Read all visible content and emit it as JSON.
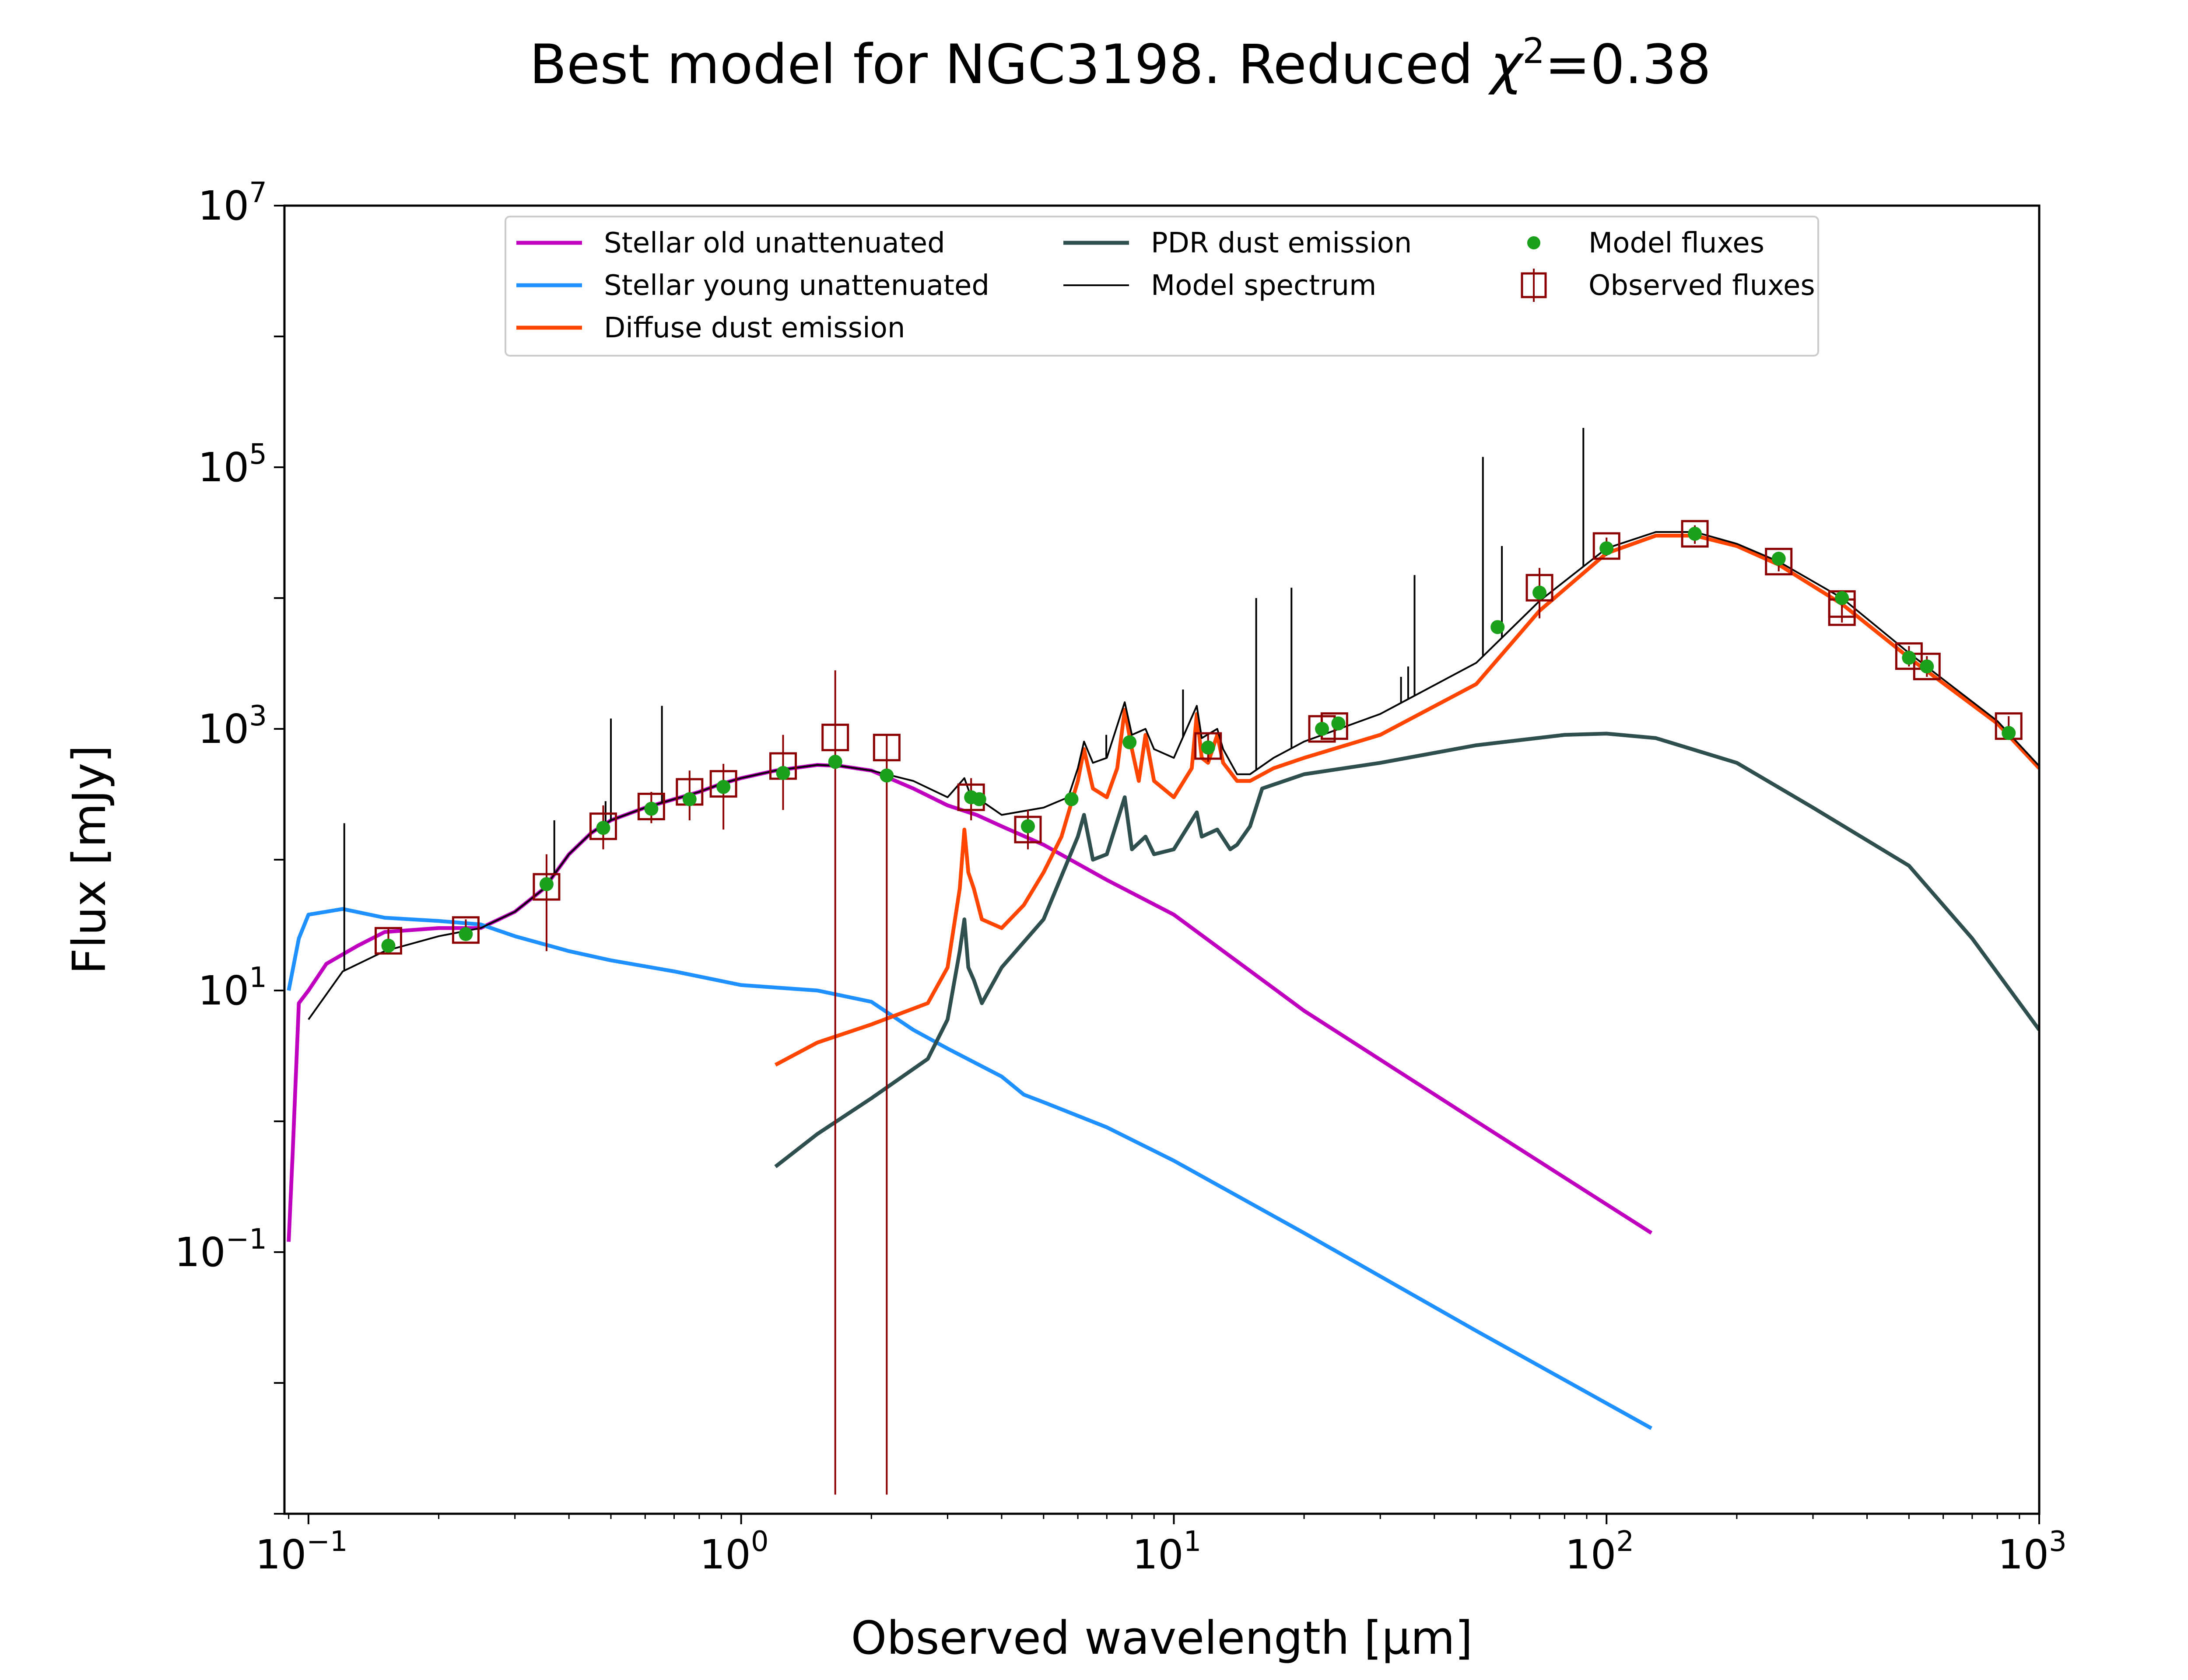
{
  "chart_data": {
    "type": "line",
    "title_main": "Best model for NGC3198. Reduced ",
    "title_chi": "χ",
    "title_sup": "2",
    "title_tail": "=0.38",
    "xlabel": "Observed wavelength [μm]",
    "ylabel": "Flux [mJy]",
    "x_scale": "log",
    "y_scale": "log",
    "xlim": [
      0.088,
      1000
    ],
    "ylim": [
      0.001,
      10000000
    ],
    "grid": false,
    "legend_position": "top-center",
    "xticks": [
      {
        "value": 0.1,
        "base": "10",
        "exp": "−1"
      },
      {
        "value": 1,
        "base": "10",
        "exp": "0"
      },
      {
        "value": 10,
        "base": "10",
        "exp": "1"
      },
      {
        "value": 100,
        "base": "10",
        "exp": "2"
      },
      {
        "value": 1000,
        "base": "10",
        "exp": "3"
      }
    ],
    "yticks": [
      {
        "value": 0.1,
        "base": "10",
        "exp": "−1"
      },
      {
        "value": 10,
        "base": "10",
        "exp": "1"
      },
      {
        "value": 1000,
        "base": "10",
        "exp": "3"
      },
      {
        "value": 100000,
        "base": "10",
        "exp": "5"
      },
      {
        "value": 10000000,
        "base": "10",
        "exp": "7"
      }
    ],
    "series": [
      {
        "name": "Stellar old unattenuated",
        "color": "#bf00bf",
        "stroke": 2.6,
        "points": [
          [
            0.09,
            0.12
          ],
          [
            0.092,
            0.6
          ],
          [
            0.095,
            8
          ],
          [
            0.1,
            10
          ],
          [
            0.11,
            16
          ],
          [
            0.13,
            22
          ],
          [
            0.15,
            28
          ],
          [
            0.2,
            30
          ],
          [
            0.25,
            30
          ],
          [
            0.3,
            40
          ],
          [
            0.35,
            60
          ],
          [
            0.4,
            110
          ],
          [
            0.45,
            160
          ],
          [
            0.5,
            200
          ],
          [
            0.6,
            250
          ],
          [
            0.7,
            290
          ],
          [
            0.8,
            330
          ],
          [
            0.9,
            380
          ],
          [
            1.0,
            420
          ],
          [
            1.2,
            480
          ],
          [
            1.5,
            530
          ],
          [
            1.7,
            520
          ],
          [
            2.0,
            480
          ],
          [
            2.5,
            350
          ],
          [
            3.0,
            260
          ],
          [
            3.5,
            220
          ],
          [
            4.0,
            180
          ],
          [
            5.0,
            130
          ],
          [
            7.0,
            70
          ],
          [
            10.0,
            38
          ],
          [
            20.0,
            7
          ],
          [
            50.0,
            1.0
          ],
          [
            127,
            0.14
          ]
        ]
      },
      {
        "name": "Stellar young unattenuated",
        "color": "#1e90ff",
        "stroke": 2.6,
        "points": [
          [
            0.09,
            10
          ],
          [
            0.095,
            25
          ],
          [
            0.1,
            38
          ],
          [
            0.12,
            42
          ],
          [
            0.15,
            36
          ],
          [
            0.2,
            34
          ],
          [
            0.25,
            32
          ],
          [
            0.3,
            26
          ],
          [
            0.4,
            20
          ],
          [
            0.5,
            17
          ],
          [
            0.7,
            14
          ],
          [
            1.0,
            11
          ],
          [
            1.5,
            10
          ],
          [
            2.0,
            8.2
          ],
          [
            2.5,
            5
          ],
          [
            3.0,
            3.6
          ],
          [
            4.0,
            2.2
          ],
          [
            4.5,
            1.6
          ],
          [
            5.0,
            1.4
          ],
          [
            7.0,
            0.9
          ],
          [
            10.0,
            0.5
          ],
          [
            20.0,
            0.14
          ],
          [
            50.0,
            0.025
          ],
          [
            127,
            0.0045
          ]
        ]
      },
      {
        "name": "Diffuse dust emission",
        "color": "#ff4500",
        "stroke": 2.6,
        "points": [
          [
            1.2,
            2.7
          ],
          [
            1.5,
            4
          ],
          [
            2.0,
            5.5
          ],
          [
            2.7,
            8
          ],
          [
            3.0,
            15
          ],
          [
            3.2,
            60
          ],
          [
            3.28,
            170
          ],
          [
            3.35,
            80
          ],
          [
            3.45,
            60
          ],
          [
            3.6,
            35
          ],
          [
            4.0,
            30
          ],
          [
            4.5,
            45
          ],
          [
            5.0,
            80
          ],
          [
            5.5,
            150
          ],
          [
            6.0,
            400
          ],
          [
            6.2,
            700
          ],
          [
            6.5,
            350
          ],
          [
            7.0,
            300
          ],
          [
            7.4,
            500
          ],
          [
            7.7,
            1400
          ],
          [
            8.0,
            700
          ],
          [
            8.3,
            400
          ],
          [
            8.6,
            900
          ],
          [
            9.0,
            400
          ],
          [
            10.0,
            300
          ],
          [
            11.0,
            500
          ],
          [
            11.3,
            1300
          ],
          [
            11.6,
            600
          ],
          [
            12.0,
            550
          ],
          [
            12.6,
            900
          ],
          [
            13.0,
            550
          ],
          [
            14.0,
            400
          ],
          [
            15.0,
            400
          ],
          [
            17.0,
            500
          ],
          [
            20.0,
            600
          ],
          [
            30.0,
            900
          ],
          [
            50.0,
            2200
          ],
          [
            70.0,
            8000
          ],
          [
            100.0,
            22000
          ],
          [
            130.0,
            30000
          ],
          [
            160.0,
            30000
          ],
          [
            200.0,
            25000
          ],
          [
            250.0,
            18000
          ],
          [
            350.0,
            9000
          ],
          [
            500.0,
            3500
          ],
          [
            800.0,
            1100
          ],
          [
            1000.0,
            500
          ]
        ]
      },
      {
        "name": "PDR dust emission",
        "color": "#2f4f4f",
        "stroke": 2.6,
        "points": [
          [
            1.2,
            0.45
          ],
          [
            1.5,
            0.8
          ],
          [
            2.0,
            1.5
          ],
          [
            2.7,
            3
          ],
          [
            3.0,
            6
          ],
          [
            3.2,
            20
          ],
          [
            3.28,
            35
          ],
          [
            3.35,
            15
          ],
          [
            3.45,
            12
          ],
          [
            3.6,
            8
          ],
          [
            4.0,
            15
          ],
          [
            5.0,
            35
          ],
          [
            6.0,
            150
          ],
          [
            6.2,
            220
          ],
          [
            6.5,
            100
          ],
          [
            7.0,
            110
          ],
          [
            7.7,
            300
          ],
          [
            8.0,
            120
          ],
          [
            8.6,
            150
          ],
          [
            9.0,
            110
          ],
          [
            10.0,
            120
          ],
          [
            11.3,
            230
          ],
          [
            11.6,
            150
          ],
          [
            12.6,
            170
          ],
          [
            13.5,
            120
          ],
          [
            14.0,
            130
          ],
          [
            15.0,
            180
          ],
          [
            16.0,
            350
          ],
          [
            20.0,
            450
          ],
          [
            30.0,
            550
          ],
          [
            50.0,
            750
          ],
          [
            80.0,
            900
          ],
          [
            100.0,
            920
          ],
          [
            130.0,
            850
          ],
          [
            200.0,
            550
          ],
          [
            300.0,
            250
          ],
          [
            500.0,
            90
          ],
          [
            700.0,
            25
          ],
          [
            1000.0,
            5
          ]
        ]
      },
      {
        "name": "Model spectrum",
        "color": "#000000",
        "stroke": 1.2,
        "points": [
          [
            0.1,
            6
          ],
          [
            0.12,
            14
          ],
          [
            0.15,
            20
          ],
          [
            0.2,
            26
          ],
          [
            0.25,
            30
          ],
          [
            0.3,
            40
          ],
          [
            0.35,
            60
          ],
          [
            0.4,
            110
          ],
          [
            0.45,
            160
          ],
          [
            0.5,
            200
          ],
          [
            0.6,
            250
          ],
          [
            0.7,
            290
          ],
          [
            0.8,
            330
          ],
          [
            0.9,
            380
          ],
          [
            1.0,
            420
          ],
          [
            1.2,
            480
          ],
          [
            1.5,
            530
          ],
          [
            1.7,
            520
          ],
          [
            2.0,
            480
          ],
          [
            2.5,
            400
          ],
          [
            3.0,
            300
          ],
          [
            3.28,
            420
          ],
          [
            3.4,
            300
          ],
          [
            3.6,
            280
          ],
          [
            4.0,
            220
          ],
          [
            5.0,
            250
          ],
          [
            5.7,
            300
          ],
          [
            6.0,
            500
          ],
          [
            6.2,
            800
          ],
          [
            6.5,
            550
          ],
          [
            7.0,
            600
          ],
          [
            7.7,
            1600
          ],
          [
            8.0,
            900
          ],
          [
            8.6,
            1000
          ],
          [
            9.0,
            700
          ],
          [
            10.0,
            600
          ],
          [
            11.3,
            1500
          ],
          [
            11.6,
            850
          ],
          [
            12.6,
            1000
          ],
          [
            13.0,
            700
          ],
          [
            14.0,
            450
          ],
          [
            15.0,
            450
          ],
          [
            17.0,
            600
          ],
          [
            20.0,
            800
          ],
          [
            30.0,
            1300
          ],
          [
            50.0,
            3200
          ],
          [
            70.0,
            9500
          ],
          [
            100.0,
            24000
          ],
          [
            130.0,
            32000
          ],
          [
            160.0,
            32000
          ],
          [
            200.0,
            26000
          ],
          [
            250.0,
            19000
          ],
          [
            350.0,
            10000
          ],
          [
            500.0,
            3800
          ],
          [
            800.0,
            1150
          ],
          [
            1000.0,
            520
          ]
        ]
      }
    ],
    "emission_lines": [
      [
        0.121,
        190
      ],
      [
        0.37,
        200
      ],
      [
        0.486,
        280
      ],
      [
        0.5,
        1200
      ],
      [
        0.656,
        1500
      ],
      [
        6.98,
        900
      ],
      [
        10.5,
        2000
      ],
      [
        15.5,
        10000
      ],
      [
        18.7,
        12000
      ],
      [
        33.5,
        2500
      ],
      [
        34.8,
        3000
      ],
      [
        36.0,
        15000
      ],
      [
        51.8,
        120000
      ],
      [
        57.3,
        25000
      ],
      [
        88.4,
        200000
      ]
    ],
    "model_fluxes": [
      [
        0.153,
        22
      ],
      [
        0.231,
        27
      ],
      [
        0.355,
        65
      ],
      [
        0.48,
        175
      ],
      [
        0.62,
        245
      ],
      [
        0.76,
        290
      ],
      [
        0.91,
        360
      ],
      [
        1.25,
        460
      ],
      [
        1.65,
        560
      ],
      [
        2.17,
        440
      ],
      [
        3.4,
        300
      ],
      [
        3.55,
        290
      ],
      [
        4.6,
        180
      ],
      [
        5.8,
        290
      ],
      [
        7.9,
        790
      ],
      [
        12.0,
        720
      ],
      [
        22.0,
        1000
      ],
      [
        24.0,
        1100
      ],
      [
        56.0,
        6000
      ],
      [
        70.0,
        11000
      ],
      [
        100.0,
        24000
      ],
      [
        160.0,
        31000
      ],
      [
        250.0,
        20000
      ],
      [
        350.0,
        10000
      ],
      [
        500.0,
        3500
      ],
      [
        550.0,
        3000
      ],
      [
        850.0,
        930
      ]
    ],
    "observed_fluxes": [
      {
        "x": 0.153,
        "y": 24,
        "lo": 19,
        "hi": 30
      },
      {
        "x": 0.231,
        "y": 29,
        "lo": 24,
        "hi": 35
      },
      {
        "x": 0.355,
        "y": 62,
        "lo": 20,
        "hi": 110
      },
      {
        "x": 0.48,
        "y": 180,
        "lo": 120,
        "hi": 260
      },
      {
        "x": 0.62,
        "y": 255,
        "lo": 190,
        "hi": 330
      },
      {
        "x": 0.76,
        "y": 330,
        "lo": 200,
        "hi": 480
      },
      {
        "x": 0.91,
        "y": 380,
        "lo": 170,
        "hi": 540
      },
      {
        "x": 1.25,
        "y": 520,
        "lo": 240,
        "hi": 900
      },
      {
        "x": 1.65,
        "y": 860,
        "lo": 0.0014,
        "hi": 2800
      },
      {
        "x": 2.17,
        "y": 720,
        "lo": 0.0014,
        "hi": 900
      },
      {
        "x": 3.4,
        "y": 300,
        "lo": 200,
        "hi": 420
      },
      {
        "x": 4.6,
        "y": 170,
        "lo": 120,
        "hi": 240
      },
      {
        "x": 12.0,
        "y": 740,
        "lo": 560,
        "hi": 900
      },
      {
        "x": 22.0,
        "y": 1000,
        "lo": 850,
        "hi": 1180
      },
      {
        "x": 23.5,
        "y": 1050,
        "lo": 900,
        "hi": 1220
      },
      {
        "x": 70.0,
        "y": 12000,
        "lo": 7000,
        "hi": 17000
      },
      {
        "x": 100.0,
        "y": 25000,
        "lo": 21000,
        "hi": 29000
      },
      {
        "x": 160.0,
        "y": 31000,
        "lo": 26000,
        "hi": 36000
      },
      {
        "x": 250.0,
        "y": 19000,
        "lo": 16000,
        "hi": 22000
      },
      {
        "x": 350.0,
        "y": 9000,
        "lo": 7500,
        "hi": 10800
      },
      {
        "x": 350.0,
        "y": 7800,
        "lo": 6500,
        "hi": 9200
      },
      {
        "x": 500.0,
        "y": 3600,
        "lo": 3000,
        "hi": 4300
      },
      {
        "x": 550.0,
        "y": 3000,
        "lo": 2500,
        "hi": 3600
      },
      {
        "x": 850.0,
        "y": 1050,
        "lo": 870,
        "hi": 1250
      }
    ],
    "legend": [
      {
        "label": "Stellar old unattenuated",
        "kind": "line",
        "color": "#bf00bf"
      },
      {
        "label": "Stellar young unattenuated",
        "kind": "line",
        "color": "#1e90ff"
      },
      {
        "label": "Diffuse dust emission",
        "kind": "line",
        "color": "#ff4500"
      },
      {
        "label": "PDR dust emission",
        "kind": "line",
        "color": "#2f4f4f"
      },
      {
        "label": "Model spectrum",
        "kind": "thinline",
        "color": "#000000"
      },
      {
        "label": "Model fluxes",
        "kind": "dot",
        "color": "#1aa01a"
      },
      {
        "label": "Observed fluxes",
        "kind": "square",
        "color": "#8b0000"
      }
    ],
    "colors": {
      "model_fluxes": "#1aa01a",
      "observed_fluxes": "#8b0000",
      "emission_lines": "#000000"
    }
  }
}
